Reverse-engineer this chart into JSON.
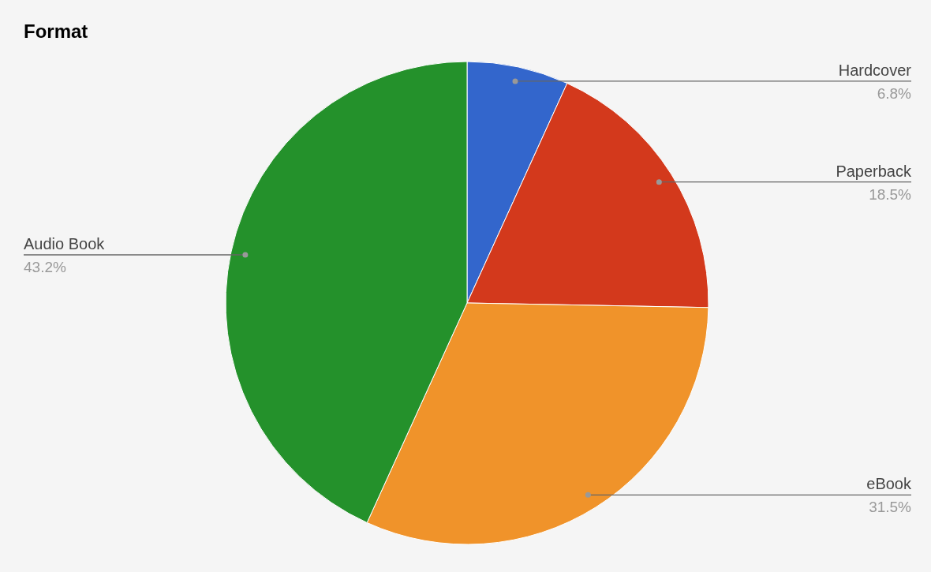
{
  "chart_data": {
    "type": "pie",
    "title": "Format",
    "categories": [
      "Hardcover",
      "Paperback",
      "eBook",
      "Audio Book"
    ],
    "values": [
      6.8,
      18.5,
      31.5,
      43.2
    ],
    "value_labels": [
      "6.8%",
      "18.5%",
      "31.5%",
      "43.2%"
    ],
    "colors": [
      "#3366cc",
      "#d3391c",
      "#f0932a",
      "#24912b"
    ]
  }
}
